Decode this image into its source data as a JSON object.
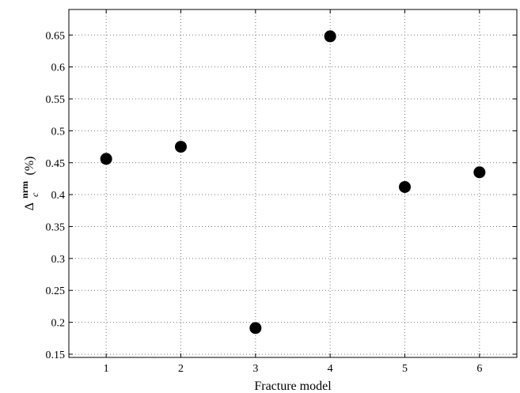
{
  "chart_data": {
    "type": "scatter",
    "title": "",
    "xlabel": "Fracture model",
    "ylabel": {
      "base": "Δ",
      "superscript": "nrm",
      "subscript": "c",
      "unit": "(%)"
    },
    "x": [
      1,
      2,
      3,
      4,
      5,
      6
    ],
    "y": [
      0.456,
      0.475,
      0.191,
      0.648,
      0.412,
      0.435
    ],
    "xlim": [
      0.5,
      6.5
    ],
    "ylim": [
      0.145,
      0.69
    ],
    "xticks": [
      1,
      2,
      3,
      4,
      5,
      6
    ],
    "xtick_labels": [
      "1",
      "2",
      "3",
      "4",
      "5",
      "6"
    ],
    "yticks": [
      0.15,
      0.2,
      0.25,
      0.3,
      0.35,
      0.4,
      0.45,
      0.5,
      0.55,
      0.6,
      0.65
    ],
    "ytick_labels": [
      "0.15",
      "0.2",
      "0.25",
      "0.3",
      "0.35",
      "0.4",
      "0.45",
      "0.5",
      "0.55",
      "0.6",
      "0.65"
    ],
    "grid": true,
    "marker": "filled-circle",
    "colors": {
      "marker": "#000000",
      "grid": "#777777",
      "axes": "#000000"
    }
  }
}
